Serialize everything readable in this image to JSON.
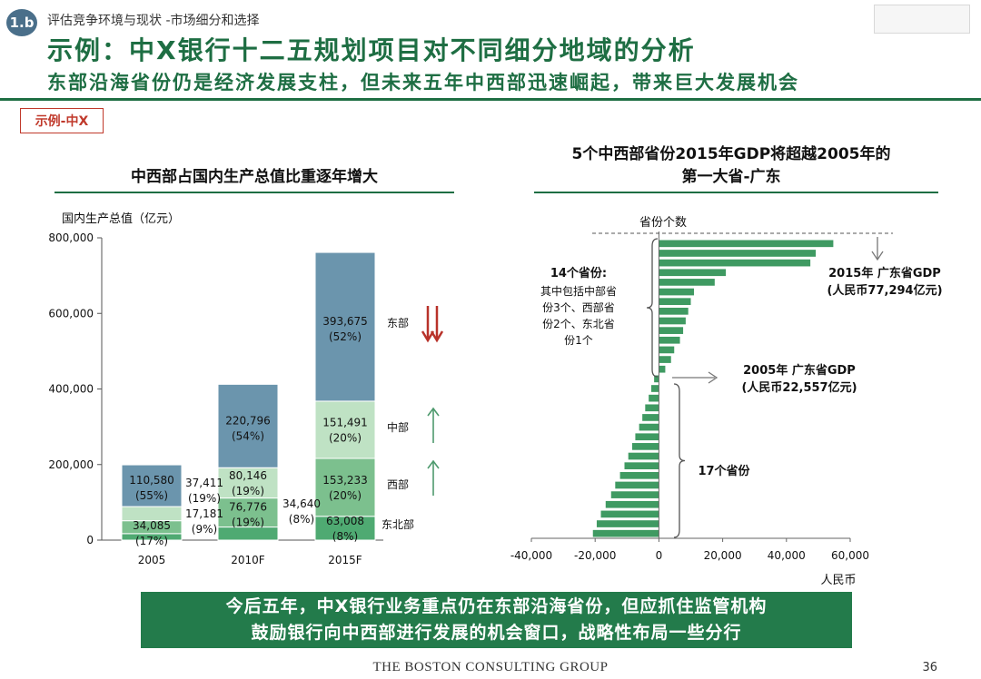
{
  "header": {
    "badge": "1.b",
    "breadcrumb": "评估竞争环境与现状 -市场细分和选择",
    "title": "示例：中X银行十二五规划项目对不同细分地域的分析",
    "subtitle": "东部沿海省份仍是经济发展支柱，但未来五年中西部迅速崛起，带来巨大发展机会",
    "tag": "示例-中X"
  },
  "left_panel": {
    "section_title": "中西部占国内生产总值比重逐年增大",
    "y_title": "国内生产总值（亿元）",
    "region_labels": [
      "东部",
      "中部",
      "西部",
      "东北部"
    ],
    "colors": {
      "east": "#6b95ad",
      "central": "#bfe2c4",
      "west": "#7cc08e",
      "northeast": "#4faa72",
      "arrow_down": "#b8322a",
      "arrow_up": "#4e9a6e"
    }
  },
  "right_panel": {
    "section_title_line1": "5个中西部省份2015年GDP将超越2005年的",
    "section_title_line2": "第一大省-广东",
    "axis_top_label": "省份个数",
    "x_unit": "人民币",
    "annot_14_title": "14个省份:",
    "annot_14_lines": [
      "其中包括中部省",
      "份3个、西部省",
      "份2个、东北省",
      "份1个"
    ],
    "annot_2015_line1": "2015年 广东省GDP",
    "annot_2015_line2": "(人民币77,294亿元)",
    "annot_2005_line1": "2005年 广东省GDP",
    "annot_2005_line2": "(人民币22,557亿元)",
    "annot_17": "17个省份"
  },
  "chart_data": [
    {
      "type": "bar",
      "stacked": true,
      "title": "中西部占国内生产总值比重逐年增大",
      "ylabel": "国内生产总值（亿元）",
      "categories": [
        "2005",
        "2010F",
        "2015F"
      ],
      "ylim": [
        0,
        800000
      ],
      "yticks": [
        0,
        200000,
        400000,
        600000,
        800000
      ],
      "ytick_labels": [
        "0",
        "200,000",
        "400,000",
        "600,000",
        "800,000"
      ],
      "series": [
        {
          "name": "东北部",
          "values": [
            17181,
            34640,
            63008
          ],
          "labels": [
            "17,181",
            "34,640",
            "63,008"
          ],
          "shares": [
            "(9%)",
            "(8%)",
            "(8%)"
          ]
        },
        {
          "name": "西部",
          "values": [
            34085,
            76776,
            153233
          ],
          "labels": [
            "34,085",
            "76,776",
            "153,233"
          ],
          "shares": [
            "(17%)",
            "(19%)",
            "(20%)"
          ]
        },
        {
          "name": "中部",
          "values": [
            37411,
            80146,
            151491
          ],
          "labels": [
            "37,411",
            "80,146",
            "151,491"
          ],
          "shares": [
            "(19%)",
            "(19%)",
            "(20%)"
          ]
        },
        {
          "name": "东部",
          "values": [
            110580,
            220796,
            393675
          ],
          "labels": [
            "110,580",
            "220,796",
            "393,675"
          ],
          "shares": [
            "(55%)",
            "(54%)",
            "(52%)"
          ]
        }
      ]
    },
    {
      "type": "bar",
      "orientation": "horizontal",
      "title": "5个中西部省份2015年GDP将超越2005年的第一大省-广东",
      "xlabel": "人民币",
      "xlim": [
        -40000,
        60000
      ],
      "xticks": [
        -40000,
        -20000,
        0,
        20000,
        40000,
        60000
      ],
      "xtick_labels": [
        "-40,000",
        "-20,000",
        "0",
        "20,000",
        "40,000",
        "60,000"
      ],
      "ylabel": "省份个数",
      "values": [
        54700,
        49200,
        47500,
        21000,
        17500,
        11000,
        10000,
        9200,
        8400,
        7600,
        6600,
        4800,
        3800,
        2000,
        -1500,
        -2400,
        -3200,
        -4300,
        -5200,
        -6200,
        -7400,
        -8400,
        -9600,
        -10800,
        -12200,
        -13700,
        -15000,
        -16700,
        -18200,
        -19500,
        -20700
      ]
    }
  ],
  "banner": {
    "line1": "今后五年，中X银行业务重点仍在东部沿海省份，但应抓住监管机构",
    "line2": "鼓励银行向中西部进行发展的机会窗口，战略性布局一些分行"
  },
  "footer": {
    "org": "THE BOSTON CONSULTING GROUP",
    "page": "36"
  }
}
